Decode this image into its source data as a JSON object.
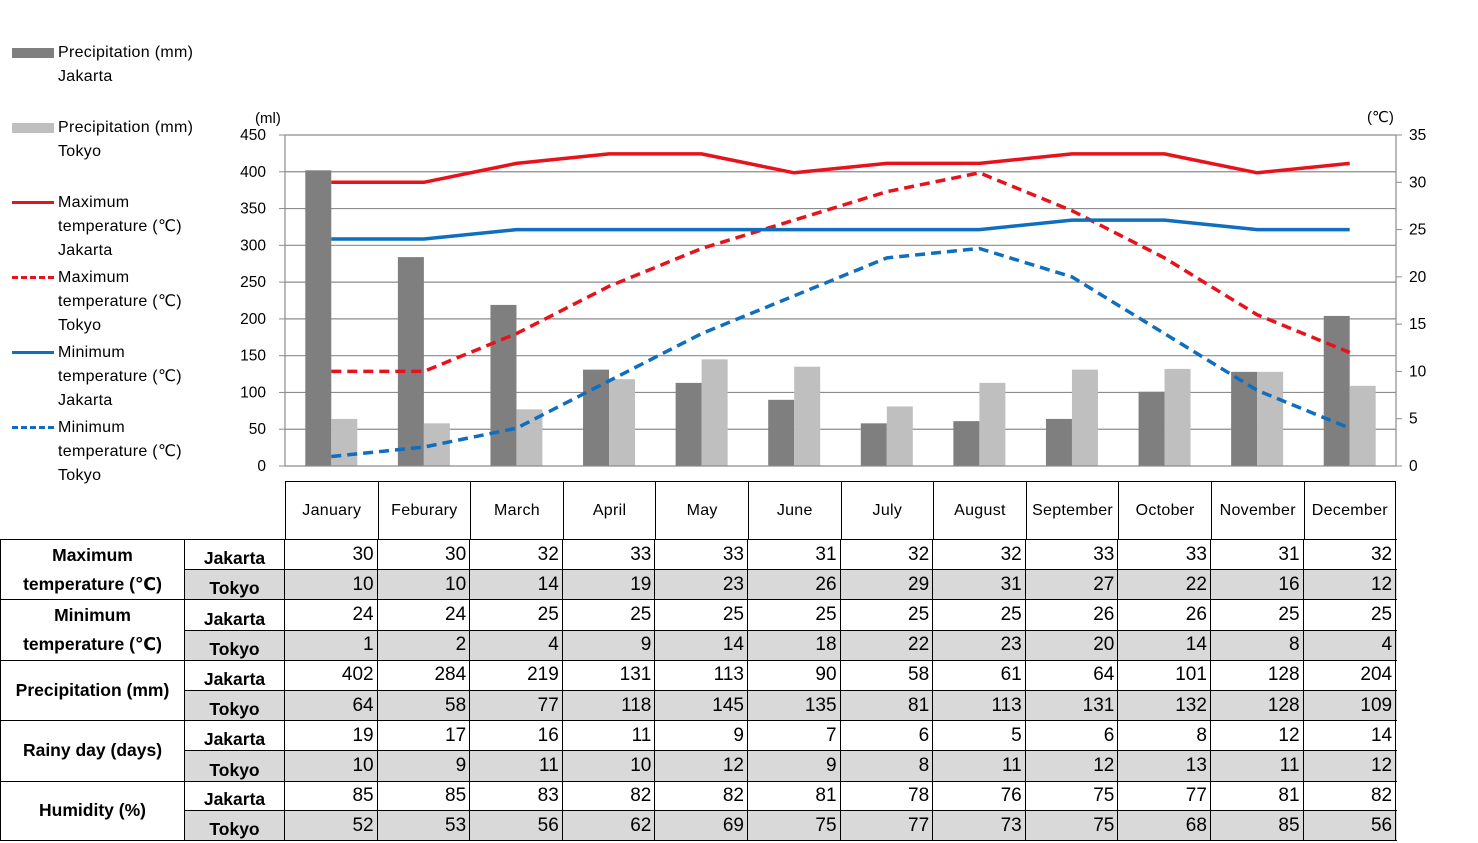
{
  "chart_data": {
    "type": "bar+line",
    "categories": [
      "January",
      "Feburary",
      "March",
      "April",
      "May",
      "June",
      "July",
      "August",
      "September",
      "October",
      "November",
      "December"
    ],
    "left_axis": {
      "unit": "(ml)",
      "min": 0,
      "max": 450,
      "step": 50
    },
    "right_axis": {
      "unit": "(℃)",
      "min": 0,
      "max": 35,
      "step": 5
    },
    "grid": true,
    "legend_position": "left",
    "bar_series": [
      {
        "name": "Precipitation (mm)\nJakarta",
        "axis": "left",
        "color": "#7f7f7f",
        "values": [
          402,
          284,
          219,
          131,
          113,
          90,
          58,
          61,
          64,
          101,
          128,
          204
        ]
      },
      {
        "name": "Precipitation (mm)\nTokyo",
        "axis": "left",
        "color": "#bfbfbf",
        "values": [
          64,
          58,
          77,
          118,
          145,
          135,
          81,
          113,
          131,
          132,
          128,
          109
        ]
      }
    ],
    "line_series": [
      {
        "name": "Maximum\ntemperature (℃)\nJakarta",
        "axis": "right",
        "color": "#e8121c",
        "dash": "solid",
        "values": [
          30,
          30,
          32,
          33,
          33,
          31,
          32,
          32,
          33,
          33,
          31,
          32
        ]
      },
      {
        "name": "Maximum\ntemperature (℃)\nTokyo",
        "axis": "right",
        "color": "#e8121c",
        "dash": "dashed",
        "values": [
          10,
          10,
          14,
          19,
          23,
          26,
          29,
          31,
          27,
          22,
          16,
          12
        ]
      },
      {
        "name": "Minimum\ntemperature (℃)\nJakarta",
        "axis": "right",
        "color": "#0f6ebe",
        "dash": "solid",
        "values": [
          24,
          24,
          25,
          25,
          25,
          25,
          25,
          25,
          26,
          26,
          25,
          25
        ]
      },
      {
        "name": "Minimum\ntemperature (℃)\nTokyo",
        "axis": "right",
        "color": "#0f6ebe",
        "dash": "dashed",
        "values": [
          1,
          2,
          4,
          9,
          14,
          18,
          22,
          23,
          20,
          14,
          8,
          4
        ]
      }
    ]
  },
  "table": {
    "groups": [
      {
        "name": "Maximum\ntemperature (℃)",
        "rows": [
          {
            "city": "Jakarta",
            "values": [
              "30",
              "30",
              "32",
              "33",
              "33",
              "31",
              "32",
              "32",
              "33",
              "33",
              "31",
              "32"
            ]
          },
          {
            "city": "Tokyo",
            "values": [
              "10",
              "10",
              "14",
              "19",
              "23",
              "26",
              "29",
              "31",
              "27",
              "22",
              "16",
              "12"
            ]
          }
        ]
      },
      {
        "name": "Minimum\ntemperature (℃)",
        "rows": [
          {
            "city": "Jakarta",
            "values": [
              "24",
              "24",
              "25",
              "25",
              "25",
              "25",
              "25",
              "25",
              "26",
              "26",
              "25",
              "25"
            ]
          },
          {
            "city": "Tokyo",
            "values": [
              "1",
              "2",
              "4",
              "9",
              "14",
              "18",
              "22",
              "23",
              "20",
              "14",
              "8",
              "4"
            ]
          }
        ]
      },
      {
        "name": "Precipitation (mm)",
        "rows": [
          {
            "city": "Jakarta",
            "values": [
              "402",
              "284",
              "219",
              "131",
              "113",
              "90",
              "58",
              "61",
              "64",
              "101",
              "128",
              "204"
            ]
          },
          {
            "city": "Tokyo",
            "values": [
              "64",
              "58",
              "77",
              "118",
              "145",
              "135",
              "81",
              "113",
              "131",
              "132",
              "128",
              "109"
            ]
          }
        ]
      },
      {
        "name": "Rainy day (days)",
        "rows": [
          {
            "city": "Jakarta",
            "values": [
              "19",
              "17",
              "16",
              "11",
              "9",
              "7",
              "6",
              "5",
              "6",
              "8",
              "12",
              "14"
            ]
          },
          {
            "city": "Tokyo",
            "values": [
              "10",
              "9",
              "11",
              "10",
              "12",
              "9",
              "8",
              "11",
              "12",
              "13",
              "11",
              "12"
            ]
          }
        ]
      },
      {
        "name": "Humidity (%)",
        "rows": [
          {
            "city": "Jakarta",
            "values": [
              "85",
              "85",
              "83",
              "82",
              "82",
              "81",
              "78",
              "76",
              "75",
              "77",
              "81",
              "82"
            ]
          },
          {
            "city": "Tokyo",
            "values": [
              "52",
              "53",
              "56",
              "62",
              "69",
              "75",
              "77",
              "73",
              "75",
              "68",
              "85",
              "56"
            ]
          }
        ]
      }
    ]
  }
}
